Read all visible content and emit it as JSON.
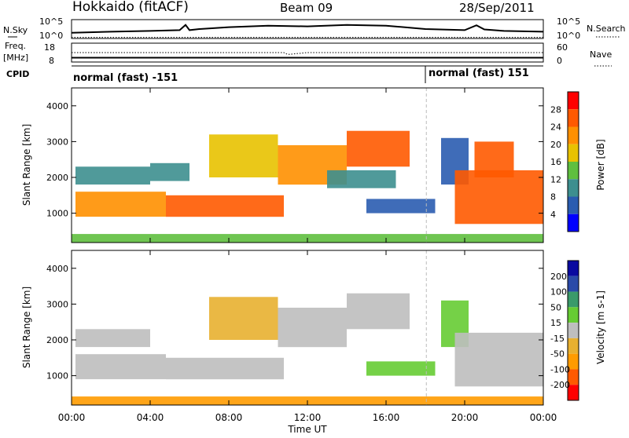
{
  "header": {
    "title": "Hokkaido (fitACF)",
    "beam": "Beam 09",
    "date": "28/Sep/2011"
  },
  "top_panel": {
    "left_label": "N.Sky",
    "right_label": "N.Search",
    "left_ticks": [
      "10^5",
      "10^0"
    ],
    "right_ticks": [
      "10^5",
      "10^0"
    ]
  },
  "freq_panel": {
    "left_label_1": "Freq.",
    "left_label_2": "[MHz]",
    "left_ticks": [
      "18",
      "8"
    ],
    "right_label": "Nave",
    "right_ticks": [
      "60",
      "0"
    ]
  },
  "cpid_panel": {
    "label": "CPID",
    "entries": [
      "normal (fast) -151",
      "normal (fast) 151"
    ]
  },
  "power_panel": {
    "ylabel": "Slant Range [km]",
    "yticks": [
      "4000",
      "3000",
      "2000",
      "1000"
    ],
    "colorbar_label": "Power [dB]",
    "colorbar_ticks": [
      "28",
      "24",
      "20",
      "16",
      "12",
      "8",
      "4"
    ]
  },
  "velocity_panel": {
    "ylabel": "Slant Range [km]",
    "yticks": [
      "4000",
      "3000",
      "2000",
      "1000"
    ],
    "colorbar_label": "Velocity [m s-1]",
    "colorbar_ticks": [
      "200",
      "100",
      "50",
      "15",
      "-15",
      "-50",
      "-100",
      "-200"
    ]
  },
  "xaxis": {
    "label": "Time UT",
    "ticks": [
      "00:00",
      "04:00",
      "08:00",
      "12:00",
      "16:00",
      "20:00",
      "00:00"
    ]
  },
  "colors": {
    "power": [
      "#0000ff",
      "#2a5cb0",
      "#3d8f8f",
      "#5fbf3f",
      "#e8c200",
      "#ff9000",
      "#ff5a00",
      "#ff0000"
    ],
    "velocity": [
      "#ff0000",
      "#ff5a00",
      "#ff9b00",
      "#e8b030",
      "#bebebe",
      "#66cc33",
      "#3a9a6a",
      "#2a4aa8",
      "#0a0aa0"
    ]
  },
  "chart_data": [
    {
      "type": "line",
      "title": "",
      "ylabel": "N.Sky",
      "x_range": [
        0,
        24
      ],
      "note": "noise levels, log scale 10^0 to 10^5",
      "series": [
        {
          "name": "N.Sky",
          "x": [
            0,
            2,
            4,
            5.5,
            5.8,
            6.0,
            6.5,
            8,
            10,
            12,
            14,
            16,
            18,
            20,
            20.6,
            21,
            22,
            24
          ],
          "values": [
            1.5,
            1.8,
            2.0,
            2.2,
            3.6,
            2.2,
            2.5,
            3.0,
            3.4,
            3.2,
            3.6,
            3.4,
            2.5,
            2.2,
            3.5,
            2.4,
            2.0,
            1.8
          ]
        },
        {
          "name": "N.Search",
          "x": [
            0,
            4,
            8,
            12,
            16,
            20,
            24
          ],
          "values": [
            0.3,
            0.3,
            0.3,
            0.3,
            0.3,
            0.3,
            0.3
          ]
        }
      ]
    },
    {
      "type": "line",
      "title": "",
      "ylabel": "Freq. [MHz]",
      "x_range": [
        0,
        24
      ],
      "series": [
        {
          "name": "Freq.",
          "x": [
            0,
            4,
            8,
            12,
            16,
            20,
            24
          ],
          "values": [
            10.3,
            10.3,
            10.3,
            10.3,
            10.3,
            10.3,
            10.3
          ]
        },
        {
          "name": "Nave",
          "x": [
            0,
            4,
            8,
            10.8,
            11,
            12,
            16,
            18,
            20,
            24
          ],
          "values": [
            30,
            30,
            30,
            30,
            24,
            30,
            30,
            30,
            30,
            30
          ]
        }
      ]
    },
    {
      "type": "heatmap",
      "title": "",
      "ylabel": "Slant Range [km]",
      "xlabel": "Time UT",
      "x_range": [
        0,
        24
      ],
      "ylim": [
        180,
        4500
      ],
      "colorbar": "Power [dB]",
      "regions": [
        {
          "x": [
            0.2,
            4.8
          ],
          "y": [
            900,
            1600
          ],
          "value": 24
        },
        {
          "x": [
            4.8,
            10.8
          ],
          "y": [
            900,
            1500
          ],
          "value": 26
        },
        {
          "x": [
            0.2,
            4.0
          ],
          "y": [
            1800,
            2300
          ],
          "value": 10
        },
        {
          "x": [
            4.0,
            6.0
          ],
          "y": [
            1900,
            2400
          ],
          "value": 12
        },
        {
          "x": [
            7.0,
            10.5
          ],
          "y": [
            2000,
            3200
          ],
          "value": 18
        },
        {
          "x": [
            10.5,
            14.0
          ],
          "y": [
            1800,
            2900
          ],
          "value": 24
        },
        {
          "x": [
            14.0,
            17.2
          ],
          "y": [
            2300,
            3300
          ],
          "value": 26
        },
        {
          "x": [
            13.0,
            16.5
          ],
          "y": [
            1700,
            2200
          ],
          "value": 10
        },
        {
          "x": [
            15.0,
            18.5
          ],
          "y": [
            1000,
            1400
          ],
          "value": 8
        },
        {
          "x": [
            18.8,
            20.2
          ],
          "y": [
            1800,
            3100
          ],
          "value": 8
        },
        {
          "x": [
            19.5,
            24.0
          ],
          "y": [
            700,
            2200
          ],
          "value": 26
        },
        {
          "x": [
            20.5,
            22.5
          ],
          "y": [
            2000,
            3000
          ],
          "value": 28
        },
        {
          "x": [
            0.0,
            24.0
          ],
          "y": [
            180,
            420
          ],
          "value": 14
        }
      ]
    },
    {
      "type": "heatmap",
      "title": "",
      "ylabel": "Slant Range [km]",
      "xlabel": "Time UT",
      "x_range": [
        0,
        24
      ],
      "ylim": [
        180,
        4500
      ],
      "colorbar": "Velocity [m s-1]",
      "regions": [
        {
          "x": [
            0.2,
            4.8
          ],
          "y": [
            900,
            1600
          ],
          "value": 0
        },
        {
          "x": [
            4.8,
            10.8
          ],
          "y": [
            900,
            1500
          ],
          "value": 0
        },
        {
          "x": [
            0.2,
            4.0
          ],
          "y": [
            1800,
            2300
          ],
          "value": 0
        },
        {
          "x": [
            7.0,
            10.5
          ],
          "y": [
            2000,
            3200
          ],
          "value": -40
        },
        {
          "x": [
            10.5,
            14.0
          ],
          "y": [
            1800,
            2900
          ],
          "value": 0
        },
        {
          "x": [
            14.0,
            17.2
          ],
          "y": [
            2300,
            3300
          ],
          "value": 0
        },
        {
          "x": [
            15.0,
            18.5
          ],
          "y": [
            1000,
            1400
          ],
          "value": 30
        },
        {
          "x": [
            18.8,
            20.2
          ],
          "y": [
            1800,
            3100
          ],
          "value": 30
        },
        {
          "x": [
            19.5,
            24.0
          ],
          "y": [
            700,
            2200
          ],
          "value": 0
        },
        {
          "x": [
            0.0,
            24.0
          ],
          "y": [
            180,
            420
          ],
          "value": -60
        }
      ]
    }
  ]
}
